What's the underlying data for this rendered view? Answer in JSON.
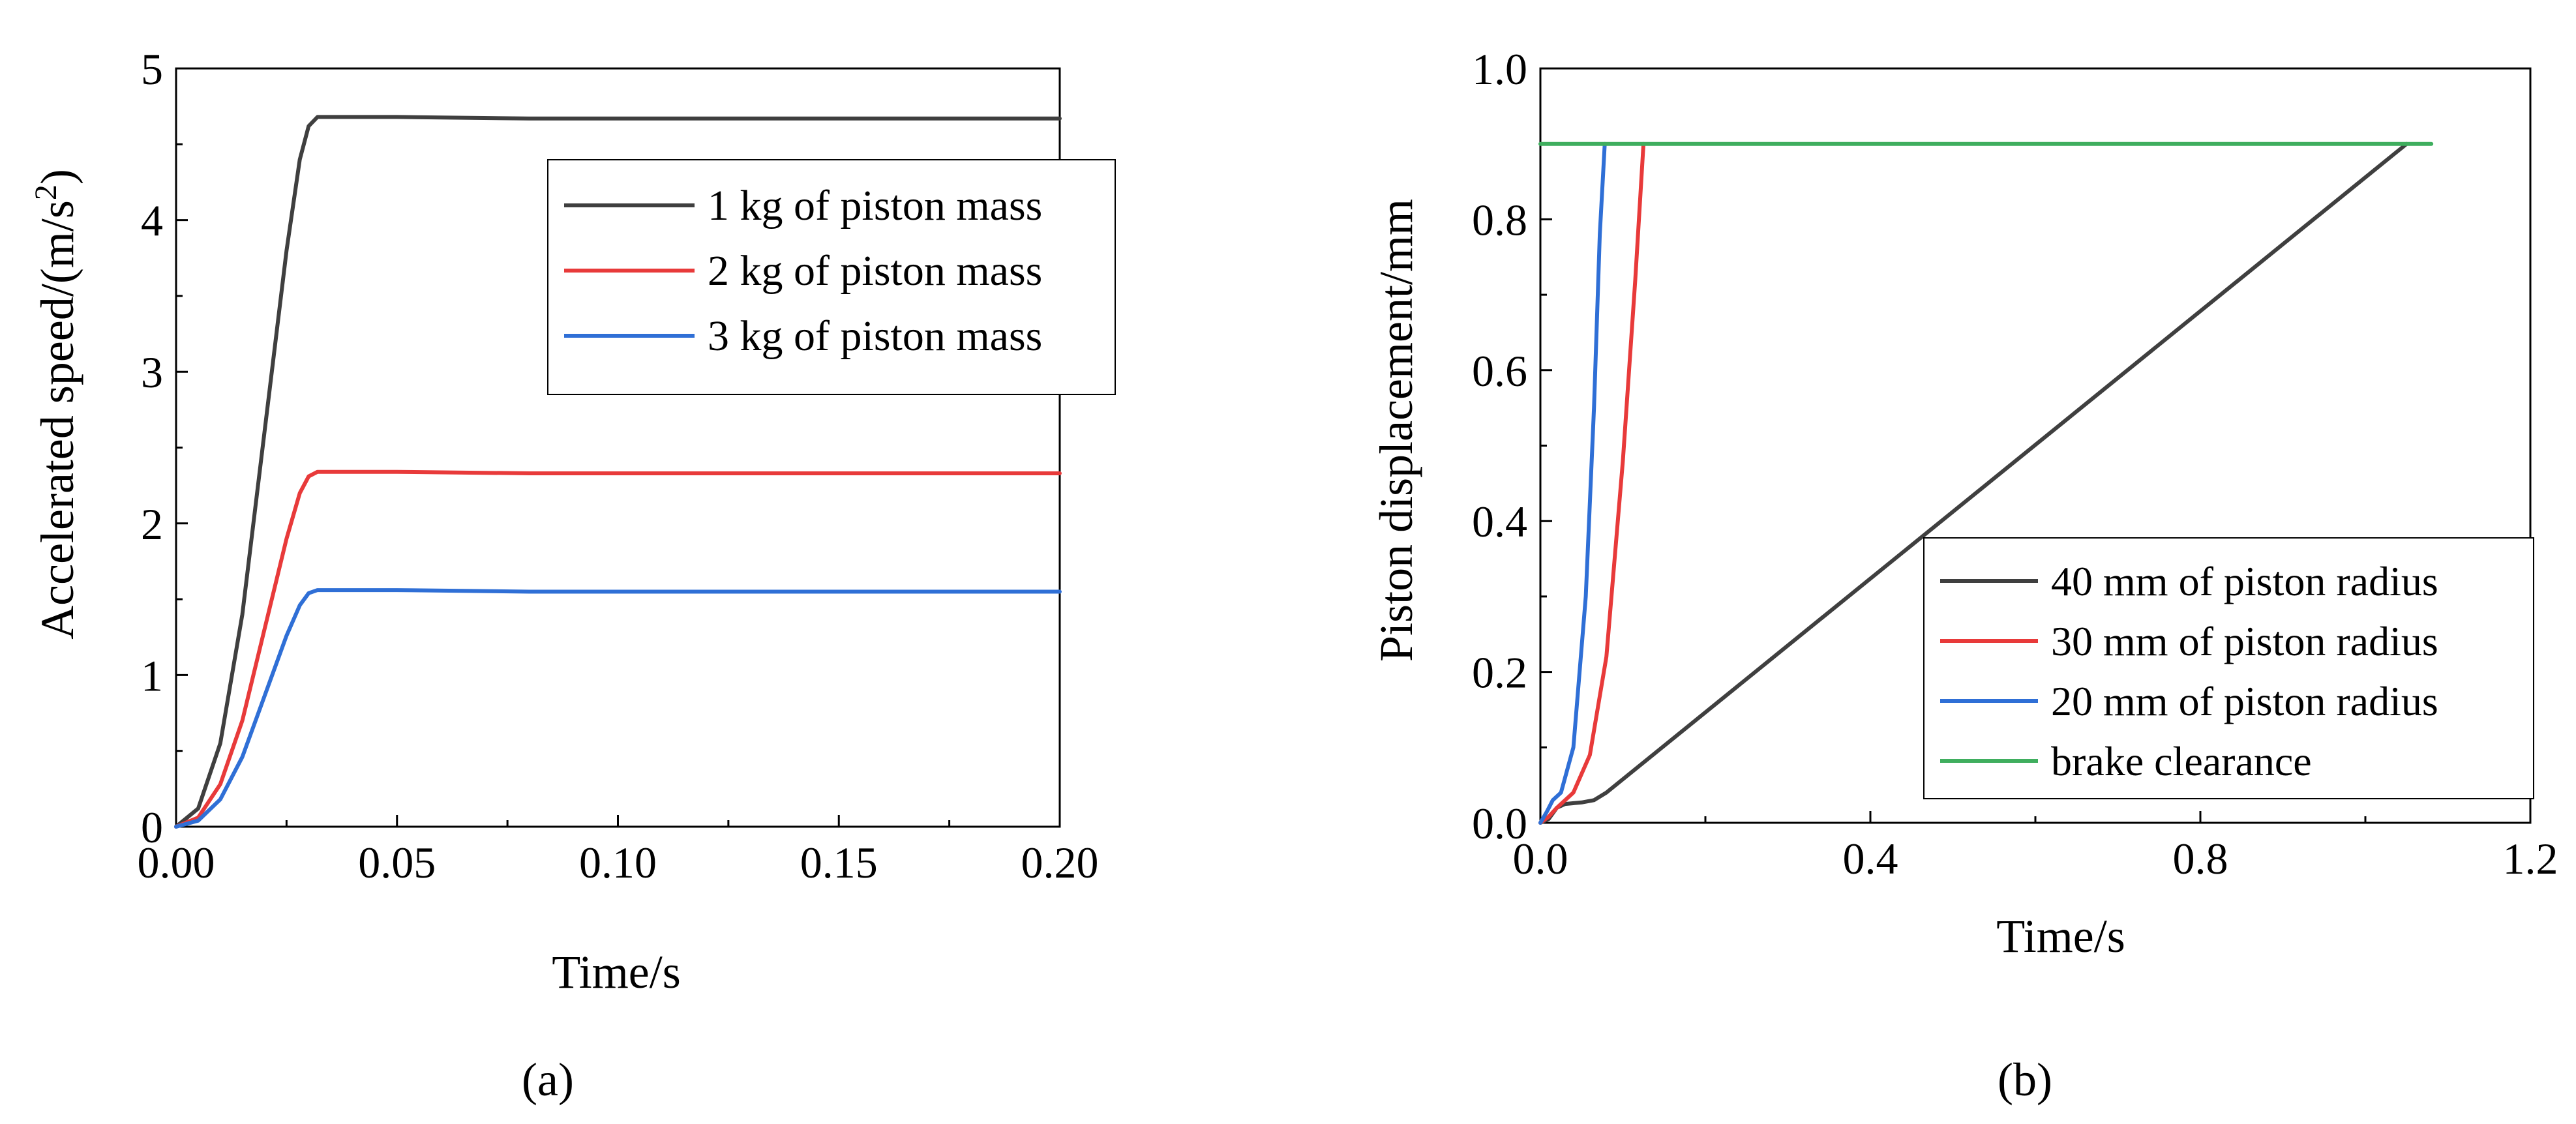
{
  "figure": {
    "panels": [
      {
        "letter": "a",
        "caption": "(a)"
      },
      {
        "letter": "b",
        "caption": "(b)"
      }
    ]
  },
  "chart_data": [
    {
      "id": "a",
      "type": "line",
      "title": "",
      "xlabel": "Time/s",
      "ylabel": "Accelerated speed/(m/s",
      "ylabel_superscript": "2",
      "ylabel_suffix": ")",
      "xlim": [
        0,
        0.2
      ],
      "ylim": [
        0,
        5
      ],
      "xticks": [
        0,
        0.05,
        0.1,
        0.15,
        0.2
      ],
      "xtick_labels": [
        "0.00",
        "0.05",
        "0.10",
        "0.15",
        "0.20"
      ],
      "yticks": [
        0,
        1,
        2,
        3,
        4,
        5
      ],
      "ytick_labels": [
        "0",
        "1",
        "2",
        "3",
        "4",
        "5"
      ],
      "grid": false,
      "legend_position": "top-right",
      "series": [
        {
          "name": "1 kg of piston mass",
          "color": "#3f3f3f",
          "x": [
            0,
            0.005,
            0.01,
            0.015,
            0.02,
            0.025,
            0.028,
            0.03,
            0.032,
            0.034,
            0.05,
            0.08,
            0.12,
            0.2
          ],
          "y": [
            0,
            0.12,
            0.55,
            1.4,
            2.6,
            3.8,
            4.4,
            4.62,
            4.68,
            4.68,
            4.68,
            4.67,
            4.67,
            4.67
          ]
        },
        {
          "name": "2 kg of piston mass",
          "color": "#e83a3a",
          "x": [
            0,
            0.005,
            0.01,
            0.015,
            0.02,
            0.025,
            0.028,
            0.03,
            0.032,
            0.034,
            0.05,
            0.08,
            0.12,
            0.2
          ],
          "y": [
            0,
            0.06,
            0.28,
            0.7,
            1.3,
            1.9,
            2.2,
            2.31,
            2.34,
            2.34,
            2.34,
            2.33,
            2.33,
            2.33
          ]
        },
        {
          "name": "3 kg of piston mass",
          "color": "#2f6fd6",
          "x": [
            0,
            0.005,
            0.01,
            0.015,
            0.02,
            0.025,
            0.028,
            0.03,
            0.032,
            0.034,
            0.05,
            0.08,
            0.12,
            0.2
          ],
          "y": [
            0,
            0.04,
            0.18,
            0.46,
            0.86,
            1.26,
            1.46,
            1.54,
            1.56,
            1.56,
            1.56,
            1.55,
            1.55,
            1.55
          ]
        }
      ]
    },
    {
      "id": "b",
      "type": "line",
      "title": "",
      "xlabel": "Time/s",
      "ylabel": "Piston displacement/mm",
      "xlim": [
        0,
        1.2
      ],
      "ylim": [
        0,
        1.0
      ],
      "xticks": [
        0,
        0.4,
        0.8,
        1.2
      ],
      "xtick_labels": [
        "0.0",
        "0.4",
        "0.8",
        "1.2"
      ],
      "yticks": [
        0,
        0.2,
        0.4,
        0.6,
        0.8,
        1.0
      ],
      "ytick_labels": [
        "0.0",
        "0.2",
        "0.4",
        "0.6",
        "0.8",
        "1.0"
      ],
      "grid": false,
      "legend_position": "bottom-right",
      "series": [
        {
          "name": "40 mm of piston radius",
          "color": "#3f3f3f",
          "x": [
            0,
            0.01,
            0.02,
            0.03,
            0.05,
            0.065,
            0.08,
            1.05
          ],
          "y": [
            0,
            0.005,
            0.02,
            0.025,
            0.027,
            0.03,
            0.04,
            0.9
          ]
        },
        {
          "name": "30 mm of piston radius",
          "color": "#e83a3a",
          "x": [
            0,
            0.01,
            0.02,
            0.04,
            0.06,
            0.08,
            0.1,
            0.115,
            0.125
          ],
          "y": [
            0,
            0.008,
            0.02,
            0.04,
            0.09,
            0.22,
            0.48,
            0.72,
            0.9
          ]
        },
        {
          "name": "20 mm of piston radius",
          "color": "#2f6fd6",
          "x": [
            0,
            0.008,
            0.015,
            0.025,
            0.04,
            0.055,
            0.065,
            0.072,
            0.078
          ],
          "y": [
            0,
            0.015,
            0.03,
            0.04,
            0.1,
            0.3,
            0.55,
            0.78,
            0.9
          ]
        },
        {
          "name": "brake clearance",
          "color": "#3fae5e",
          "x": [
            0,
            1.08
          ],
          "y": [
            0.9,
            0.9
          ]
        }
      ]
    }
  ]
}
